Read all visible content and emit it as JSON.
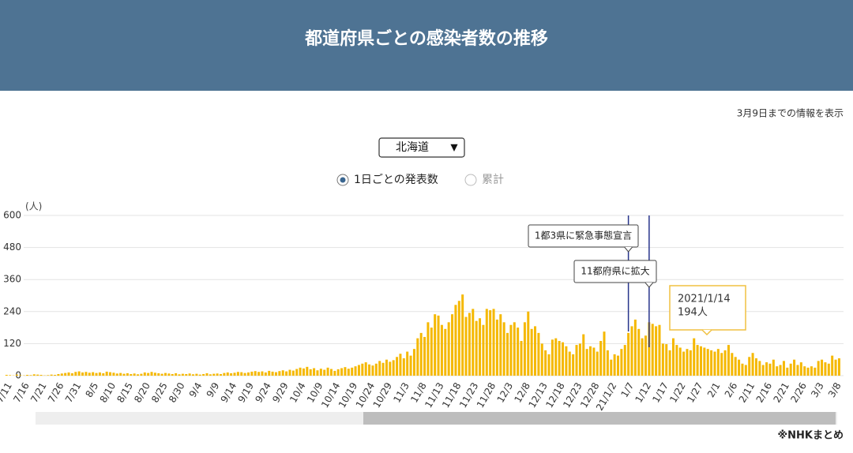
{
  "header": {
    "title": "都道府県ごとの感染者数の推移"
  },
  "note": "3月9日までの情報を表示",
  "selector": {
    "value": "北海道",
    "arrow": "▼"
  },
  "radios": [
    {
      "label": "1日ごとの発表数",
      "selected": true
    },
    {
      "label": "累計",
      "selected": false
    }
  ],
  "footer": "※NHKまとめ",
  "chart_data": {
    "type": "bar",
    "y_label": "(人)",
    "color": "#f5b800",
    "ylim": [
      0,
      600
    ],
    "yticks": [
      0,
      120,
      240,
      360,
      480,
      600
    ],
    "grid": true,
    "annotations": [
      "1都3県に緊急事態宣言",
      "11都府県に拡大"
    ],
    "tooltip": {
      "title": "2021/1/14",
      "text": "194人"
    },
    "categories": [
      "7/11",
      null,
      null,
      null,
      null,
      "7/16",
      null,
      null,
      null,
      null,
      "7/21",
      null,
      null,
      null,
      null,
      "7/26",
      null,
      null,
      null,
      null,
      "7/31",
      null,
      null,
      null,
      null,
      "8/5",
      null,
      null,
      null,
      null,
      "8/10",
      null,
      null,
      null,
      null,
      "8/15",
      null,
      null,
      null,
      null,
      "8/20",
      null,
      null,
      null,
      null,
      "8/25",
      null,
      null,
      null,
      null,
      "8/30",
      null,
      null,
      null,
      null,
      "9/4",
      null,
      null,
      null,
      null,
      "9/9",
      null,
      null,
      null,
      null,
      "9/14",
      null,
      null,
      null,
      null,
      "9/19",
      null,
      null,
      null,
      null,
      "9/24",
      null,
      null,
      null,
      null,
      "9/29",
      null,
      null,
      null,
      null,
      "10/4",
      null,
      null,
      null,
      null,
      "10/9",
      null,
      null,
      null,
      null,
      "10/14",
      null,
      null,
      null,
      null,
      "10/19",
      null,
      null,
      null,
      null,
      "10/24",
      null,
      null,
      null,
      null,
      "10/29",
      null,
      null,
      null,
      null,
      "11/3",
      null,
      null,
      null,
      null,
      "11/8",
      null,
      null,
      null,
      null,
      "11/13",
      null,
      null,
      null,
      null,
      "11/18",
      null,
      null,
      null,
      null,
      "11/23",
      null,
      null,
      null,
      null,
      "11/28",
      null,
      null,
      null,
      null,
      "12/3",
      null,
      null,
      null,
      null,
      "12/8",
      null,
      null,
      null,
      null,
      "12/13",
      null,
      null,
      null,
      null,
      "12/18",
      null,
      null,
      null,
      null,
      "12/23",
      null,
      null,
      null,
      null,
      "12/28",
      null,
      null,
      null,
      null,
      "21/1/2",
      null,
      null,
      null,
      null,
      "1/7",
      null,
      null,
      null,
      null,
      "1/12",
      null,
      null,
      null,
      null,
      "1/17",
      null,
      null,
      null,
      null,
      "1/22",
      null,
      null,
      null,
      null,
      "1/27",
      null,
      null,
      null,
      null,
      "2/1",
      null,
      null,
      null,
      null,
      "2/6",
      null,
      null,
      null,
      null,
      "2/11",
      null,
      null,
      null,
      null,
      "2/16",
      null,
      null,
      null,
      null,
      "2/21",
      null,
      null,
      null,
      null,
      "2/26",
      null,
      null,
      null,
      null,
      "3/3",
      null,
      null,
      null,
      null,
      "3/8",
      null
    ],
    "values": [
      3,
      2,
      1,
      4,
      2,
      1,
      3,
      2,
      5,
      4,
      3,
      1,
      2,
      4,
      3,
      6,
      8,
      10,
      12,
      9,
      14,
      16,
      12,
      14,
      11,
      13,
      10,
      12,
      9,
      15,
      13,
      11,
      8,
      10,
      7,
      9,
      6,
      8,
      5,
      7,
      12,
      10,
      14,
      11,
      9,
      7,
      10,
      8,
      6,
      9,
      5,
      7,
      6,
      8,
      5,
      7,
      4,
      6,
      9,
      5,
      7,
      8,
      6,
      10,
      12,
      9,
      11,
      14,
      13,
      10,
      12,
      15,
      17,
      14,
      16,
      12,
      18,
      15,
      13,
      17,
      20,
      16,
      22,
      19,
      25,
      30,
      27,
      33,
      24,
      28,
      20,
      26,
      22,
      30,
      25,
      18,
      24,
      28,
      32,
      26,
      30,
      35,
      40,
      45,
      50,
      42,
      38,
      45,
      55,
      48,
      60,
      52,
      58,
      70,
      82,
      65,
      90,
      75,
      100,
      140,
      160,
      145,
      200,
      180,
      230,
      225,
      190,
      175,
      200,
      230,
      265,
      280,
      304,
      220,
      235,
      250,
      205,
      215,
      190,
      250,
      245,
      250,
      210,
      230,
      200,
      160,
      190,
      200,
      180,
      130,
      200,
      240,
      175,
      185,
      160,
      120,
      95,
      80,
      135,
      140,
      130,
      125,
      110,
      90,
      80,
      115,
      120,
      155,
      100,
      110,
      105,
      90,
      130,
      165,
      95,
      60,
      80,
      75,
      100,
      115,
      160,
      185,
      210,
      175,
      140,
      150,
      200,
      194,
      185,
      190,
      120,
      118,
      95,
      140,
      115,
      105,
      90,
      100,
      95,
      140,
      115,
      110,
      105,
      100,
      95,
      90,
      100,
      85,
      95,
      115,
      85,
      70,
      60,
      45,
      40,
      70,
      85,
      65,
      55,
      40,
      50,
      45,
      60,
      35,
      40,
      55,
      30,
      45,
      60,
      40,
      50,
      35,
      30,
      35,
      30,
      55,
      60,
      50,
      45,
      75,
      60,
      65
    ]
  }
}
